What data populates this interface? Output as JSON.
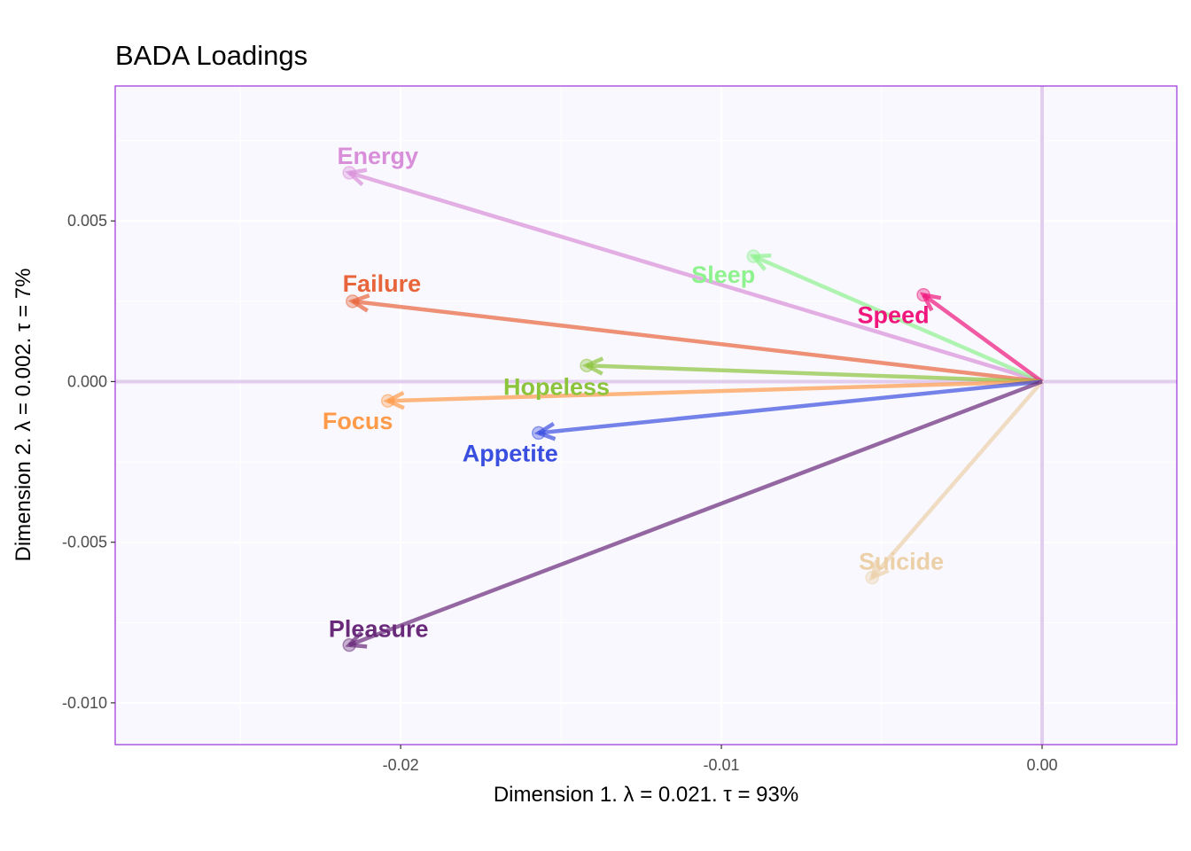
{
  "chart_data": {
    "type": "scatter",
    "title": "BADA Loadings",
    "xlabel": "Dimension 1.   λ = 0.021.  τ = 93%",
    "ylabel": "Dimension 2.   λ = 0.002.  τ = 7%",
    "xlim": [
      -0.0289,
      0.0042
    ],
    "ylim": [
      -0.0113,
      0.0092
    ],
    "xticks": [
      -0.02,
      -0.01,
      0.0
    ],
    "xtick_labels": [
      "-0.02",
      "-0.01",
      "0.00"
    ],
    "yticks": [
      0.005,
      0.0,
      -0.005,
      -0.01
    ],
    "ytick_labels": [
      "0.005",
      "0.000",
      "-0.005",
      "-0.010"
    ],
    "grid": true,
    "arrows_from_origin": true,
    "panel_background": "#f8f8fe",
    "panel_border": "#9b30d9",
    "origin_lines_color": "#e2cdee",
    "points": [
      {
        "name": "Energy",
        "x": -0.0216,
        "y": 0.0065,
        "color": "#d98ed9"
      },
      {
        "name": "Sleep",
        "x": -0.009,
        "y": 0.0039,
        "color": "#8ef28e"
      },
      {
        "name": "Speed",
        "x": -0.0037,
        "y": 0.0027,
        "color": "#f0167c"
      },
      {
        "name": "Failure",
        "x": -0.0215,
        "y": 0.0025,
        "color": "#e8643a"
      },
      {
        "name": "Hopeless",
        "x": -0.0142,
        "y": 0.0005,
        "color": "#8cc43c"
      },
      {
        "name": "Focus",
        "x": -0.0204,
        "y": -0.0006,
        "color": "#ff9a48"
      },
      {
        "name": "Appetite",
        "x": -0.0157,
        "y": -0.0016,
        "color": "#3a4ee0"
      },
      {
        "name": "Suicide",
        "x": -0.0053,
        "y": -0.0061,
        "color": "#ecd0a8"
      },
      {
        "name": "Pleasure",
        "x": -0.0216,
        "y": -0.0082,
        "color": "#6a2a7a"
      }
    ]
  }
}
